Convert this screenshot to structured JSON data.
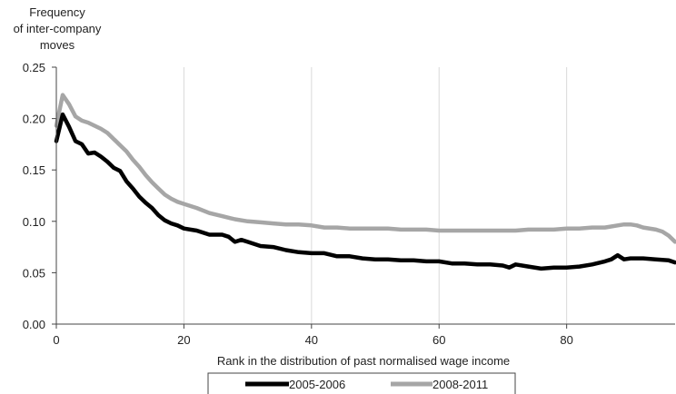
{
  "chart_data": {
    "type": "line",
    "ylabel_lines": [
      "Frequency",
      "of inter-company",
      "moves"
    ],
    "xlabel": "Rank in the distribution of past normalised wage income",
    "xlim": [
      0,
      97
    ],
    "ylim": [
      0,
      0.25
    ],
    "x_ticks": [
      "0",
      "20",
      "40",
      "60",
      "80"
    ],
    "y_ticks": [
      "0.00",
      "0.05",
      "0.10",
      "0.15",
      "0.20",
      "0.25"
    ],
    "grid": "vertical",
    "legend_position": "bottom",
    "series": [
      {
        "name": "2005-2006",
        "color": "#000000",
        "points": [
          [
            0,
            0.178
          ],
          [
            1,
            0.204
          ],
          [
            2,
            0.192
          ],
          [
            3,
            0.178
          ],
          [
            4,
            0.175
          ],
          [
            5,
            0.166
          ],
          [
            6,
            0.167
          ],
          [
            7,
            0.163
          ],
          [
            8,
            0.158
          ],
          [
            9,
            0.152
          ],
          [
            10,
            0.149
          ],
          [
            11,
            0.139
          ],
          [
            12,
            0.132
          ],
          [
            13,
            0.124
          ],
          [
            14,
            0.118
          ],
          [
            15,
            0.113
          ],
          [
            16,
            0.106
          ],
          [
            17,
            0.101
          ],
          [
            18,
            0.098
          ],
          [
            19,
            0.096
          ],
          [
            20,
            0.093
          ],
          [
            22,
            0.091
          ],
          [
            24,
            0.087
          ],
          [
            26,
            0.087
          ],
          [
            27,
            0.085
          ],
          [
            28,
            0.08
          ],
          [
            29,
            0.082
          ],
          [
            30,
            0.08
          ],
          [
            32,
            0.076
          ],
          [
            34,
            0.075
          ],
          [
            36,
            0.072
          ],
          [
            38,
            0.07
          ],
          [
            40,
            0.069
          ],
          [
            42,
            0.069
          ],
          [
            44,
            0.066
          ],
          [
            46,
            0.066
          ],
          [
            48,
            0.064
          ],
          [
            50,
            0.063
          ],
          [
            52,
            0.063
          ],
          [
            54,
            0.062
          ],
          [
            56,
            0.062
          ],
          [
            58,
            0.061
          ],
          [
            60,
            0.061
          ],
          [
            62,
            0.059
          ],
          [
            64,
            0.059
          ],
          [
            66,
            0.058
          ],
          [
            68,
            0.058
          ],
          [
            70,
            0.057
          ],
          [
            71,
            0.055
          ],
          [
            72,
            0.058
          ],
          [
            74,
            0.056
          ],
          [
            76,
            0.054
          ],
          [
            78,
            0.055
          ],
          [
            80,
            0.055
          ],
          [
            82,
            0.056
          ],
          [
            84,
            0.058
          ],
          [
            86,
            0.061
          ],
          [
            87,
            0.063
          ],
          [
            88,
            0.067
          ],
          [
            89,
            0.063
          ],
          [
            90,
            0.064
          ],
          [
            92,
            0.064
          ],
          [
            94,
            0.063
          ],
          [
            96,
            0.062
          ],
          [
            97,
            0.06
          ]
        ]
      },
      {
        "name": "2008-2011",
        "color": "#a6a6a6",
        "points": [
          [
            0,
            0.193
          ],
          [
            1,
            0.223
          ],
          [
            2,
            0.214
          ],
          [
            3,
            0.202
          ],
          [
            4,
            0.198
          ],
          [
            5,
            0.196
          ],
          [
            6,
            0.193
          ],
          [
            7,
            0.19
          ],
          [
            8,
            0.186
          ],
          [
            9,
            0.18
          ],
          [
            10,
            0.174
          ],
          [
            11,
            0.168
          ],
          [
            12,
            0.16
          ],
          [
            13,
            0.153
          ],
          [
            14,
            0.145
          ],
          [
            15,
            0.138
          ],
          [
            16,
            0.132
          ],
          [
            17,
            0.126
          ],
          [
            18,
            0.122
          ],
          [
            19,
            0.119
          ],
          [
            20,
            0.117
          ],
          [
            22,
            0.113
          ],
          [
            24,
            0.108
          ],
          [
            26,
            0.105
          ],
          [
            28,
            0.102
          ],
          [
            30,
            0.1
          ],
          [
            32,
            0.099
          ],
          [
            34,
            0.098
          ],
          [
            36,
            0.097
          ],
          [
            38,
            0.097
          ],
          [
            40,
            0.096
          ],
          [
            42,
            0.094
          ],
          [
            44,
            0.094
          ],
          [
            46,
            0.093
          ],
          [
            48,
            0.093
          ],
          [
            50,
            0.093
          ],
          [
            52,
            0.093
          ],
          [
            54,
            0.092
          ],
          [
            56,
            0.092
          ],
          [
            58,
            0.092
          ],
          [
            60,
            0.091
          ],
          [
            62,
            0.091
          ],
          [
            64,
            0.091
          ],
          [
            66,
            0.091
          ],
          [
            68,
            0.091
          ],
          [
            70,
            0.091
          ],
          [
            72,
            0.091
          ],
          [
            74,
            0.092
          ],
          [
            76,
            0.092
          ],
          [
            78,
            0.092
          ],
          [
            80,
            0.093
          ],
          [
            82,
            0.093
          ],
          [
            84,
            0.094
          ],
          [
            86,
            0.094
          ],
          [
            88,
            0.096
          ],
          [
            89,
            0.097
          ],
          [
            90,
            0.097
          ],
          [
            91,
            0.096
          ],
          [
            92,
            0.094
          ],
          [
            94,
            0.092
          ],
          [
            95,
            0.09
          ],
          [
            96,
            0.086
          ],
          [
            97,
            0.08
          ]
        ]
      }
    ]
  }
}
